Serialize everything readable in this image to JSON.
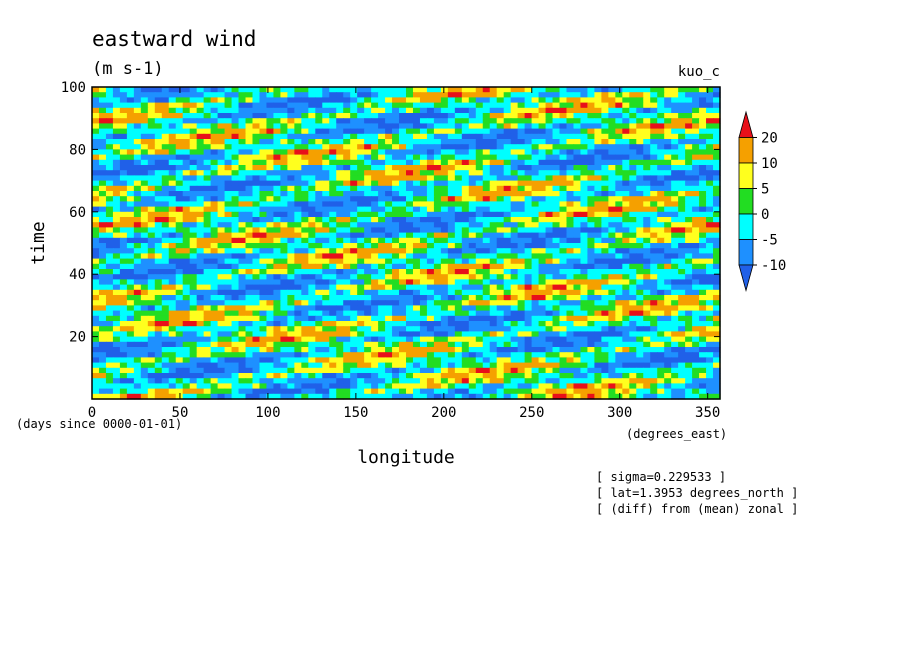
{
  "chart_data": {
    "type": "heatmap",
    "title": "eastward wind",
    "units": "(m s-1)",
    "run_label": "kuo_c",
    "xlabel": "longitude",
    "x_units": "(degrees_east)",
    "ylabel": "time",
    "y_units": "(days since 0000-01-01)",
    "xlim": [
      0,
      357
    ],
    "ylim": [
      0,
      100
    ],
    "x_ticks": [
      "0",
      "50",
      "100",
      "150",
      "200",
      "250",
      "300",
      "350"
    ],
    "x_tick_values": [
      0,
      50,
      100,
      150,
      200,
      250,
      300,
      350
    ],
    "y_ticks": [
      "20",
      "40",
      "60",
      "80",
      "100"
    ],
    "y_tick_values": [
      20,
      40,
      60,
      80,
      100
    ],
    "colorbar": {
      "levels": [
        "20",
        "10",
        "5",
        "0",
        "-5",
        "-10"
      ],
      "colors": [
        "#e8101a",
        "#f5a000",
        "#ffff1e",
        "#22dd22",
        "#00ffff",
        "#1e90ff",
        "#2060e8"
      ]
    },
    "annotations": [
      "[ sigma=0.229533 ]",
      "[ lat=1.3953 degrees_north ]",
      "[ (diff) from (mean) zonal ]"
    ]
  }
}
